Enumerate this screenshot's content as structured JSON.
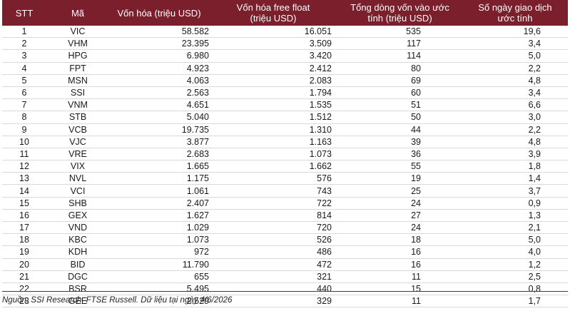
{
  "headers": {
    "stt": "STT",
    "ma": "Mã",
    "von_hoa": "Vốn hóa (triệu USD)",
    "free_float": [
      "Vốn hóa free float",
      "(triệu USD)"
    ],
    "dong_von": [
      "Tổng dòng vốn vào ước",
      "tính (triệu USD)"
    ],
    "so_ngay": [
      "Số ngày giao dịch",
      "ước tính"
    ]
  },
  "rows": [
    {
      "stt": "1",
      "ma": "VIC",
      "von_hoa": "58.582",
      "free_float": "16.051",
      "dong_von": "535",
      "so_ngay": "19,6"
    },
    {
      "stt": "2",
      "ma": "VHM",
      "von_hoa": "23.395",
      "free_float": "3.509",
      "dong_von": "117",
      "so_ngay": "3,4"
    },
    {
      "stt": "3",
      "ma": "HPG",
      "von_hoa": "6.980",
      "free_float": "3.420",
      "dong_von": "114",
      "so_ngay": "5,0"
    },
    {
      "stt": "4",
      "ma": "FPT",
      "von_hoa": "4.923",
      "free_float": "2.412",
      "dong_von": "80",
      "so_ngay": "2,2"
    },
    {
      "stt": "5",
      "ma": "MSN",
      "von_hoa": "4.063",
      "free_float": "2.083",
      "dong_von": "69",
      "so_ngay": "4,8"
    },
    {
      "stt": "6",
      "ma": "SSI",
      "von_hoa": "2.563",
      "free_float": "1.794",
      "dong_von": "60",
      "so_ngay": "3,4"
    },
    {
      "stt": "7",
      "ma": "VNM",
      "von_hoa": "4.651",
      "free_float": "1.535",
      "dong_von": "51",
      "so_ngay": "6,6"
    },
    {
      "stt": "8",
      "ma": "STB",
      "von_hoa": "5.040",
      "free_float": "1.512",
      "dong_von": "50",
      "so_ngay": "3,0"
    },
    {
      "stt": "9",
      "ma": "VCB",
      "von_hoa": "19.735",
      "free_float": "1.310",
      "dong_von": "44",
      "so_ngay": "2,2"
    },
    {
      "stt": "10",
      "ma": "VJC",
      "von_hoa": "3.877",
      "free_float": "1.163",
      "dong_von": "39",
      "so_ngay": "4,8"
    },
    {
      "stt": "11",
      "ma": "VRE",
      "von_hoa": "2.683",
      "free_float": "1.073",
      "dong_von": "36",
      "so_ngay": "3,9"
    },
    {
      "stt": "12",
      "ma": "VIX",
      "von_hoa": "1.665",
      "free_float": "1.662",
      "dong_von": "55",
      "so_ngay": "1,8"
    },
    {
      "stt": "13",
      "ma": "NVL",
      "von_hoa": "1.175",
      "free_float": "576",
      "dong_von": "19",
      "so_ngay": "1,4"
    },
    {
      "stt": "14",
      "ma": "VCI",
      "von_hoa": "1.061",
      "free_float": "743",
      "dong_von": "25",
      "so_ngay": "3,7"
    },
    {
      "stt": "15",
      "ma": "SHB",
      "von_hoa": "2.407",
      "free_float": "722",
      "dong_von": "24",
      "so_ngay": "0,9"
    },
    {
      "stt": "16",
      "ma": "GEX",
      "von_hoa": "1.627",
      "free_float": "814",
      "dong_von": "27",
      "so_ngay": "1,3"
    },
    {
      "stt": "17",
      "ma": "VND",
      "von_hoa": "1.029",
      "free_float": "720",
      "dong_von": "24",
      "so_ngay": "2,1"
    },
    {
      "stt": "18",
      "ma": "KBC",
      "von_hoa": "1.073",
      "free_float": "526",
      "dong_von": "18",
      "so_ngay": "5,0"
    },
    {
      "stt": "19",
      "ma": "KDH",
      "von_hoa": "972",
      "free_float": "486",
      "dong_von": "16",
      "so_ngay": "4,0"
    },
    {
      "stt": "20",
      "ma": "BID",
      "von_hoa": "11.790",
      "free_float": "472",
      "dong_von": "16",
      "so_ngay": "1,2"
    },
    {
      "stt": "21",
      "ma": "DGC",
      "von_hoa": "655",
      "free_float": "321",
      "dong_von": "11",
      "so_ngay": "2,5"
    },
    {
      "stt": "22",
      "ma": "BSR",
      "von_hoa": "5.495",
      "free_float": "440",
      "dong_von": "15",
      "so_ngay": "0,8"
    },
    {
      "stt": "23",
      "ma": "GEE",
      "von_hoa": "2.529",
      "free_float": "329",
      "dong_von": "11",
      "so_ngay": "1,7"
    }
  ],
  "source_note": "Nguồn: SSI Research, FTSE Russell. Dữ liệu tại ngày 4/6/2026",
  "colors": {
    "header_bg": "#7a1f2b",
    "header_text": "#ffffff"
  }
}
